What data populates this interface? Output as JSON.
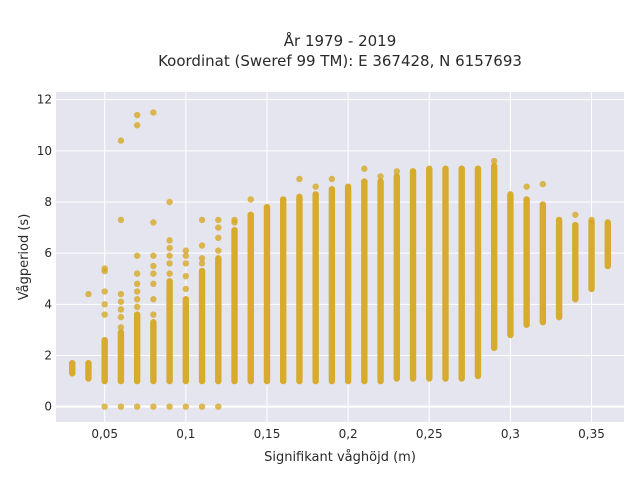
{
  "chart_data": {
    "type": "scatter",
    "title_line1": "År 1979 - 2019",
    "title_line2": "Koordinat (Sweref 99 TM): E 367428, N 6157693",
    "xlabel": "Signifikant våghöjd (m)",
    "ylabel": "Vågperiod (s)",
    "xlim": [
      0.02,
      0.37
    ],
    "ylim": [
      -0.6,
      12.3
    ],
    "x_ticks": [
      0.05,
      0.1,
      0.15,
      0.2,
      0.25,
      0.3,
      0.35
    ],
    "x_tick_labels": [
      "0,05",
      "0,1",
      "0,15",
      "0,2",
      "0,25",
      "0,3",
      "0,35"
    ],
    "y_ticks": [
      0,
      2,
      4,
      6,
      8,
      10,
      12
    ],
    "y_tick_labels": [
      "0",
      "2",
      "4",
      "6",
      "8",
      "10",
      "12"
    ],
    "grid": true,
    "colors": {
      "marker": "#d4a418",
      "plot_bg": "#e5e5ef",
      "grid": "#ffffff"
    },
    "series": [
      {
        "columns": [
          {
            "x": 0.03,
            "ranges": [
              [
                1.3,
                1.7
              ]
            ],
            "points": []
          },
          {
            "x": 0.04,
            "ranges": [
              [
                1.1,
                1.7
              ]
            ],
            "points": [
              4.4
            ]
          },
          {
            "x": 0.05,
            "ranges": [
              [
                1.0,
                2.6
              ]
            ],
            "points": [
              0,
              3.6,
              4.0,
              4.5,
              5.3,
              5.4
            ]
          },
          {
            "x": 0.06,
            "ranges": [
              [
                1.0,
                2.9
              ]
            ],
            "points": [
              0,
              3.1,
              3.5,
              3.8,
              4.1,
              4.4,
              7.3,
              10.4
            ]
          },
          {
            "x": 0.07,
            "ranges": [
              [
                1.0,
                3.6
              ]
            ],
            "points": [
              0,
              3.9,
              4.2,
              4.5,
              4.8,
              5.2,
              5.9,
              11.0,
              11.4
            ]
          },
          {
            "x": 0.08,
            "ranges": [
              [
                1.0,
                3.3
              ]
            ],
            "points": [
              0,
              3.6,
              4.2,
              4.8,
              5.2,
              5.5,
              5.9,
              7.2,
              11.5
            ]
          },
          {
            "x": 0.09,
            "ranges": [
              [
                1.0,
                4.9
              ]
            ],
            "points": [
              0,
              5.2,
              5.6,
              5.9,
              6.2,
              6.5,
              8.0
            ]
          },
          {
            "x": 0.1,
            "ranges": [
              [
                1.0,
                4.2
              ]
            ],
            "points": [
              0,
              4.6,
              5.1,
              5.6,
              5.9,
              6.1
            ]
          },
          {
            "x": 0.11,
            "ranges": [
              [
                1.0,
                5.3
              ]
            ],
            "points": [
              0,
              5.6,
              5.8,
              6.3,
              7.3
            ]
          },
          {
            "x": 0.12,
            "ranges": [
              [
                1.0,
                5.8
              ]
            ],
            "points": [
              0,
              6.1,
              6.6,
              7.0,
              7.3
            ]
          },
          {
            "x": 0.13,
            "ranges": [
              [
                1.0,
                6.9
              ]
            ],
            "points": [
              7.2,
              7.3
            ]
          },
          {
            "x": 0.14,
            "ranges": [
              [
                1.0,
                7.5
              ]
            ],
            "points": [
              8.1
            ]
          },
          {
            "x": 0.15,
            "ranges": [
              [
                1.0,
                7.8
              ]
            ],
            "points": []
          },
          {
            "x": 0.16,
            "ranges": [
              [
                1.0,
                8.1
              ]
            ],
            "points": []
          },
          {
            "x": 0.17,
            "ranges": [
              [
                1.0,
                8.2
              ]
            ],
            "points": [
              8.9
            ]
          },
          {
            "x": 0.18,
            "ranges": [
              [
                1.0,
                8.3
              ]
            ],
            "points": [
              8.6
            ]
          },
          {
            "x": 0.19,
            "ranges": [
              [
                1.0,
                8.5
              ]
            ],
            "points": [
              8.9
            ]
          },
          {
            "x": 0.2,
            "ranges": [
              [
                1.0,
                8.6
              ]
            ],
            "points": []
          },
          {
            "x": 0.21,
            "ranges": [
              [
                1.0,
                8.8
              ]
            ],
            "points": [
              9.3
            ]
          },
          {
            "x": 0.22,
            "ranges": [
              [
                1.0,
                8.8
              ]
            ],
            "points": [
              9.0
            ]
          },
          {
            "x": 0.23,
            "ranges": [
              [
                1.1,
                9.0
              ]
            ],
            "points": [
              9.2
            ]
          },
          {
            "x": 0.24,
            "ranges": [
              [
                1.1,
                9.2
              ]
            ],
            "points": []
          },
          {
            "x": 0.25,
            "ranges": [
              [
                1.1,
                9.3
              ]
            ],
            "points": []
          },
          {
            "x": 0.26,
            "ranges": [
              [
                1.1,
                9.3
              ]
            ],
            "points": []
          },
          {
            "x": 0.27,
            "ranges": [
              [
                1.1,
                9.3
              ]
            ],
            "points": []
          },
          {
            "x": 0.28,
            "ranges": [
              [
                1.2,
                9.3
              ]
            ],
            "points": []
          },
          {
            "x": 0.29,
            "ranges": [
              [
                2.3,
                9.4
              ]
            ],
            "points": [
              9.6
            ]
          },
          {
            "x": 0.3,
            "ranges": [
              [
                2.8,
                8.3
              ]
            ],
            "points": []
          },
          {
            "x": 0.31,
            "ranges": [
              [
                3.2,
                8.1
              ]
            ],
            "points": [
              8.6
            ]
          },
          {
            "x": 0.32,
            "ranges": [
              [
                3.3,
                7.9
              ]
            ],
            "points": [
              8.7
            ]
          },
          {
            "x": 0.33,
            "ranges": [
              [
                3.5,
                7.3
              ]
            ],
            "points": []
          },
          {
            "x": 0.34,
            "ranges": [
              [
                4.2,
                7.1
              ]
            ],
            "points": [
              7.5
            ]
          },
          {
            "x": 0.35,
            "ranges": [
              [
                4.6,
                7.2
              ]
            ],
            "points": [
              7.3
            ]
          },
          {
            "x": 0.36,
            "ranges": [
              [
                5.5,
                7.2
              ]
            ],
            "points": []
          }
        ]
      }
    ]
  }
}
